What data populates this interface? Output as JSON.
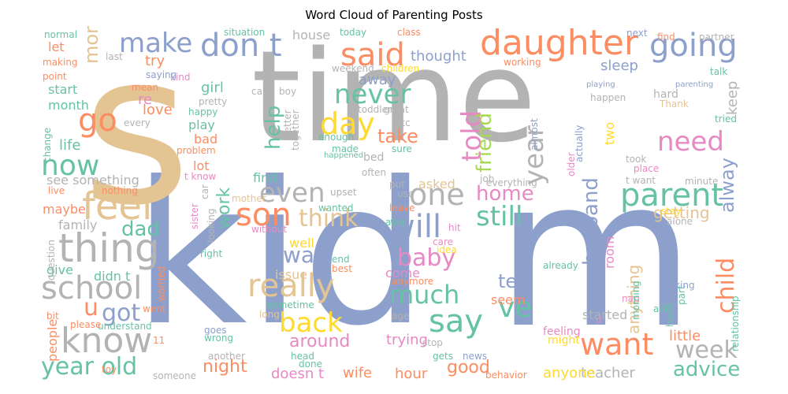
{
  "title": "Word Cloud of Parenting Posts",
  "palette": {
    "blue": "#8da0cb",
    "gray": "#b3b3b3",
    "tan": "#e5c494",
    "orange": "#fc8d62",
    "green": "#66c2a5",
    "pink": "#e78ac3",
    "lime": "#a6d854",
    "yellow": "#ffd92f"
  },
  "words": [
    {
      "text": "time",
      "color": "gray"
    },
    {
      "text": "kid",
      "color": "blue"
    },
    {
      "text": "s",
      "color": "tan"
    },
    {
      "text": "m",
      "color": "blue"
    },
    {
      "text": "daughter",
      "color": "orange"
    },
    {
      "text": "going",
      "color": "blue"
    },
    {
      "text": "make",
      "color": "blue"
    },
    {
      "text": "don t",
      "color": "blue"
    },
    {
      "text": "said",
      "color": "orange"
    },
    {
      "text": "mom",
      "color": "tan"
    },
    {
      "text": "go",
      "color": "orange"
    },
    {
      "text": "now",
      "color": "green"
    },
    {
      "text": "feel",
      "color": "tan"
    },
    {
      "text": "thing",
      "color": "gray"
    },
    {
      "text": "school",
      "color": "gray"
    },
    {
      "text": "know",
      "color": "gray"
    },
    {
      "text": "year old",
      "color": "green"
    },
    {
      "text": "never",
      "color": "green"
    },
    {
      "text": "day",
      "color": "yellow"
    },
    {
      "text": "told",
      "color": "pink"
    },
    {
      "text": "friend",
      "color": "lime"
    },
    {
      "text": "year",
      "color": "gray"
    },
    {
      "text": "need",
      "color": "pink"
    },
    {
      "text": "help",
      "color": "green"
    },
    {
      "text": "even",
      "color": "gray"
    },
    {
      "text": "one",
      "color": "gray"
    },
    {
      "text": "son",
      "color": "orange"
    },
    {
      "text": "will",
      "color": "blue"
    },
    {
      "text": "parent",
      "color": "green"
    },
    {
      "text": "alway",
      "color": "blue"
    },
    {
      "text": "think",
      "color": "tan"
    },
    {
      "text": "home",
      "color": "pink"
    },
    {
      "text": "still",
      "color": "green"
    },
    {
      "text": "work",
      "color": "green"
    },
    {
      "text": "dad",
      "color": "green"
    },
    {
      "text": "husband",
      "color": "blue"
    },
    {
      "text": "way",
      "color": "blue"
    },
    {
      "text": "baby",
      "color": "pink"
    },
    {
      "text": "really",
      "color": "tan"
    },
    {
      "text": "much",
      "color": "green"
    },
    {
      "text": "child",
      "color": "orange"
    },
    {
      "text": "got",
      "color": "blue"
    },
    {
      "text": "back",
      "color": "yellow"
    },
    {
      "text": "say",
      "color": "green"
    },
    {
      "text": "ve",
      "color": "green"
    },
    {
      "text": "want",
      "color": "orange"
    },
    {
      "text": "week",
      "color": "gray"
    },
    {
      "text": "advice",
      "color": "green"
    },
    {
      "text": "take",
      "color": "orange"
    },
    {
      "text": "thought",
      "color": "blue"
    },
    {
      "text": "sleep",
      "color": "blue"
    },
    {
      "text": "getting",
      "color": "tan"
    },
    {
      "text": "tell",
      "color": "blue"
    },
    {
      "text": "around",
      "color": "pink"
    },
    {
      "text": "night",
      "color": "orange"
    },
    {
      "text": "good",
      "color": "orange"
    },
    {
      "text": "u",
      "color": "orange"
    },
    {
      "text": "away",
      "color": "blue"
    },
    {
      "text": "first",
      "color": "green"
    },
    {
      "text": "lot",
      "color": "orange"
    },
    {
      "text": "love",
      "color": "orange"
    },
    {
      "text": "life",
      "color": "green"
    },
    {
      "text": "month",
      "color": "green"
    },
    {
      "text": "start",
      "color": "green"
    },
    {
      "text": "girl",
      "color": "green"
    },
    {
      "text": "try",
      "color": "orange"
    },
    {
      "text": "let",
      "color": "orange"
    },
    {
      "text": "re",
      "color": "pink"
    },
    {
      "text": "play",
      "color": "green"
    },
    {
      "text": "bad",
      "color": "orange"
    },
    {
      "text": "house",
      "color": "gray"
    },
    {
      "text": "little",
      "color": "orange"
    },
    {
      "text": "keep",
      "color": "gray"
    },
    {
      "text": "seem",
      "color": "orange"
    },
    {
      "text": "anything",
      "color": "tan"
    },
    {
      "text": "started",
      "color": "gray"
    },
    {
      "text": "teacher",
      "color": "gray"
    },
    {
      "text": "anyone",
      "color": "yellow"
    },
    {
      "text": "wife",
      "color": "orange"
    },
    {
      "text": "hour",
      "color": "orange"
    },
    {
      "text": "doesn t",
      "color": "pink"
    },
    {
      "text": "trying",
      "color": "pink"
    },
    {
      "text": "see something",
      "color": "gray"
    },
    {
      "text": "family",
      "color": "gray"
    },
    {
      "text": "give",
      "color": "green"
    },
    {
      "text": "didn t",
      "color": "green"
    },
    {
      "text": "well",
      "color": "yellow"
    },
    {
      "text": "asked",
      "color": "tan"
    },
    {
      "text": "come",
      "color": "pink"
    },
    {
      "text": "issue",
      "color": "tan"
    },
    {
      "text": "maybe",
      "color": "orange"
    },
    {
      "text": "nothing",
      "color": "orange"
    },
    {
      "text": "live",
      "color": "orange"
    },
    {
      "text": "two",
      "color": "yellow"
    },
    {
      "text": "room",
      "color": "pink"
    },
    {
      "text": "people",
      "color": "orange"
    },
    {
      "text": "understand",
      "color": "green"
    },
    {
      "text": "normal",
      "color": "green"
    },
    {
      "text": "making",
      "color": "orange"
    },
    {
      "text": "point",
      "color": "orange"
    },
    {
      "text": "situation",
      "color": "green"
    },
    {
      "text": "today",
      "color": "green"
    },
    {
      "text": "class",
      "color": "orange"
    },
    {
      "text": "next",
      "color": "blue"
    },
    {
      "text": "find",
      "color": "orange"
    },
    {
      "text": "partner",
      "color": "gray"
    },
    {
      "text": "last",
      "color": "gray"
    },
    {
      "text": "kind",
      "color": "pink"
    },
    {
      "text": "saying",
      "color": "blue"
    },
    {
      "text": "mean",
      "color": "orange"
    },
    {
      "text": "change",
      "color": "green"
    },
    {
      "text": "every",
      "color": "gray"
    },
    {
      "text": "pretty",
      "color": "gray"
    },
    {
      "text": "happy",
      "color": "green"
    },
    {
      "text": "problem",
      "color": "orange"
    },
    {
      "text": "t know",
      "color": "pink"
    },
    {
      "text": "better",
      "color": "gray"
    },
    {
      "text": "together",
      "color": "gray"
    },
    {
      "text": "call",
      "color": "gray"
    },
    {
      "text": "boy",
      "color": "gray"
    },
    {
      "text": "weekend",
      "color": "gray"
    },
    {
      "text": "children",
      "color": "yellow"
    },
    {
      "text": "toddler",
      "color": "gray"
    },
    {
      "text": "great",
      "color": "gray"
    },
    {
      "text": "etc",
      "color": "gray"
    },
    {
      "text": "enough",
      "color": "green"
    },
    {
      "text": "made",
      "color": "green"
    },
    {
      "text": "happened",
      "color": "green"
    },
    {
      "text": "sure",
      "color": "green"
    },
    {
      "text": "bed",
      "color": "gray"
    },
    {
      "text": "often",
      "color": "gray"
    },
    {
      "text": "put",
      "color": "gray"
    },
    {
      "text": "job",
      "color": "gray"
    },
    {
      "text": "use",
      "color": "gray"
    },
    {
      "text": "everything",
      "color": "gray"
    },
    {
      "text": "upset",
      "color": "gray"
    },
    {
      "text": "leave",
      "color": "orange"
    },
    {
      "text": "able",
      "color": "green"
    },
    {
      "text": "wanted",
      "color": "green"
    },
    {
      "text": "without",
      "color": "pink"
    },
    {
      "text": "care",
      "color": "pink"
    },
    {
      "text": "idea",
      "color": "yellow"
    },
    {
      "text": "end",
      "color": "green"
    },
    {
      "text": "best",
      "color": "orange"
    },
    {
      "text": "anymore",
      "color": "orange"
    },
    {
      "text": "sometime",
      "color": "green"
    },
    {
      "text": "long",
      "color": "tan"
    },
    {
      "text": "age",
      "color": "gray"
    },
    {
      "text": "stop",
      "color": "gray"
    },
    {
      "text": "head",
      "color": "green"
    },
    {
      "text": "done",
      "color": "green"
    },
    {
      "text": "gets",
      "color": "green"
    },
    {
      "text": "news",
      "color": "blue"
    },
    {
      "text": "behavior",
      "color": "orange"
    },
    {
      "text": "someone",
      "color": "gray"
    },
    {
      "text": "toy",
      "color": "orange"
    },
    {
      "text": "another",
      "color": "gray"
    },
    {
      "text": "goes",
      "color": "blue"
    },
    {
      "text": "wrong",
      "color": "green"
    },
    {
      "text": "please",
      "color": "orange"
    },
    {
      "text": "11",
      "color": "orange"
    },
    {
      "text": "bit",
      "color": "orange"
    },
    {
      "text": "went",
      "color": "orange"
    },
    {
      "text": "worried",
      "color": "orange"
    },
    {
      "text": "question",
      "color": "gray"
    },
    {
      "text": "right",
      "color": "green"
    },
    {
      "text": "sister",
      "color": "pink"
    },
    {
      "text": "mother",
      "color": "tan"
    },
    {
      "text": "car",
      "color": "gray"
    },
    {
      "text": "looking",
      "color": "gray"
    },
    {
      "text": "hit",
      "color": "pink"
    },
    {
      "text": "already",
      "color": "green"
    },
    {
      "text": "feeling",
      "color": "pink"
    },
    {
      "text": "might",
      "color": "yellow"
    },
    {
      "text": "ask",
      "color": "green"
    },
    {
      "text": "hand",
      "color": "green"
    },
    {
      "text": "part",
      "color": "green"
    },
    {
      "text": "taking",
      "color": "blue"
    },
    {
      "text": "nap",
      "color": "pink"
    },
    {
      "text": "morning",
      "color": "green"
    },
    {
      "text": "d",
      "color": "pink"
    },
    {
      "text": "relationship",
      "color": "green"
    },
    {
      "text": "alone",
      "color": "gray"
    },
    {
      "text": "stay",
      "color": "yellow"
    },
    {
      "text": "place",
      "color": "pink"
    },
    {
      "text": "took",
      "color": "gray"
    },
    {
      "text": "t want",
      "color": "gray"
    },
    {
      "text": "minute",
      "color": "gray"
    },
    {
      "text": "older",
      "color": "pink"
    },
    {
      "text": "actually",
      "color": "blue"
    },
    {
      "text": "almost",
      "color": "blue"
    },
    {
      "text": "happen",
      "color": "gray"
    },
    {
      "text": "hard",
      "color": "gray"
    },
    {
      "text": "Thank",
      "color": "tan"
    },
    {
      "text": "talk",
      "color": "green"
    },
    {
      "text": "tried",
      "color": "green"
    },
    {
      "text": "parenting",
      "color": "blue"
    },
    {
      "text": "playing",
      "color": "blue"
    },
    {
      "text": "working",
      "color": "orange"
    }
  ]
}
